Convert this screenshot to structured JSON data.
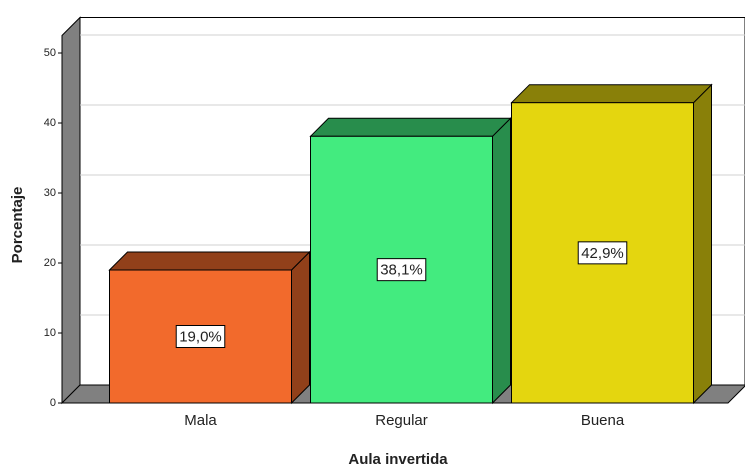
{
  "chart_data": {
    "type": "bar3d",
    "x_label": "Aula invertida",
    "y_label": "Porcentaje",
    "categories": [
      "Mala",
      "Regular",
      "Buena"
    ],
    "values": [
      19.0,
      38.1,
      42.9
    ],
    "value_labels": [
      "19,0%",
      "38,1%",
      "42,9%"
    ],
    "colors": [
      "#f26a2c",
      "#43eb7f",
      "#e4d60f"
    ],
    "ylim": [
      0,
      52.5
    ],
    "yticks": [
      0,
      10,
      20,
      30,
      40,
      50
    ],
    "grid": true
  }
}
